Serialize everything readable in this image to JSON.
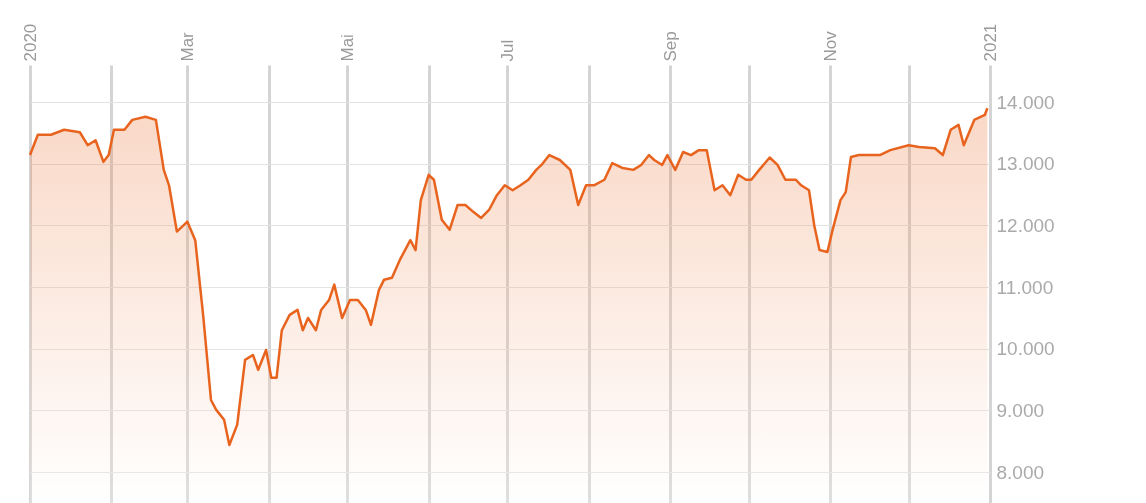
{
  "chart_data": {
    "type": "area",
    "x": [
      "2020-01-01",
      "2020-01-04",
      "2020-01-09",
      "2020-01-14",
      "2020-01-20",
      "2020-01-23",
      "2020-01-26",
      "2020-01-29",
      "2020-01-31",
      "2020-02-02",
      "2020-02-06",
      "2020-02-09",
      "2020-02-14",
      "2020-02-18",
      "2020-02-21",
      "2020-02-23",
      "2020-02-26",
      "2020-03-01",
      "2020-03-04",
      "2020-03-07",
      "2020-03-10",
      "2020-03-12",
      "2020-03-15",
      "2020-03-17",
      "2020-03-20",
      "2020-03-23",
      "2020-03-26",
      "2020-03-28",
      "2020-03-31",
      "2020-04-02",
      "2020-04-04",
      "2020-04-06",
      "2020-04-09",
      "2020-04-12",
      "2020-04-14",
      "2020-04-16",
      "2020-04-19",
      "2020-04-21",
      "2020-04-24",
      "2020-04-26",
      "2020-04-29",
      "2020-05-02",
      "2020-05-05",
      "2020-05-08",
      "2020-05-10",
      "2020-05-13",
      "2020-05-15",
      "2020-05-18",
      "2020-05-21",
      "2020-05-25",
      "2020-05-27",
      "2020-05-29",
      "2020-06-01",
      "2020-06-03",
      "2020-06-06",
      "2020-06-09",
      "2020-06-12",
      "2020-06-15",
      "2020-06-18",
      "2020-06-21",
      "2020-06-24",
      "2020-06-27",
      "2020-06-30",
      "2020-07-03",
      "2020-07-06",
      "2020-07-09",
      "2020-07-12",
      "2020-07-14",
      "2020-07-17",
      "2020-07-21",
      "2020-07-25",
      "2020-07-28",
      "2020-07-31",
      "2020-08-03",
      "2020-08-07",
      "2020-08-10",
      "2020-08-14",
      "2020-08-18",
      "2020-08-21",
      "2020-08-24",
      "2020-08-26",
      "2020-08-29",
      "2020-08-31",
      "2020-09-03",
      "2020-09-06",
      "2020-09-09",
      "2020-09-12",
      "2020-09-15",
      "2020-09-18",
      "2020-09-21",
      "2020-09-24",
      "2020-09-27",
      "2020-09-30",
      "2020-10-02",
      "2020-10-05",
      "2020-10-09",
      "2020-10-12",
      "2020-10-15",
      "2020-10-19",
      "2020-10-21",
      "2020-10-24",
      "2020-10-26",
      "2020-10-28",
      "2020-10-31",
      "2020-11-02",
      "2020-11-05",
      "2020-11-07",
      "2020-11-09",
      "2020-11-12",
      "2020-11-16",
      "2020-11-20",
      "2020-11-24",
      "2020-12-01",
      "2020-12-05",
      "2020-12-11",
      "2020-12-14",
      "2020-12-17",
      "2020-12-20",
      "2020-12-22",
      "2020-12-26",
      "2020-12-30",
      "2020-12-31"
    ],
    "series": [
      {
        "color": "#e8641e",
        "values": [
          13140,
          13470,
          13470,
          13550,
          13510,
          13300,
          13380,
          13030,
          13140,
          13550,
          13550,
          13710,
          13760,
          13710,
          12900,
          12650,
          11900,
          12060,
          11760,
          10550,
          9170,
          9010,
          8850,
          8440,
          8770,
          9820,
          9900,
          9660,
          9980,
          9530,
          9530,
          10300,
          10550,
          10630,
          10300,
          10500,
          10300,
          10630,
          10790,
          11040,
          10500,
          10790,
          10790,
          10630,
          10390,
          10950,
          11120,
          11150,
          11440,
          11760,
          11600,
          12410,
          12820,
          12740,
          12090,
          11930,
          12330,
          12330,
          12220,
          12120,
          12250,
          12490,
          12650,
          12570,
          12650,
          12740,
          12900,
          12980,
          13140,
          13060,
          12900,
          12330,
          12650,
          12650,
          12740,
          13010,
          12930,
          12900,
          12980,
          13140,
          13060,
          12980,
          13140,
          12900,
          13190,
          13140,
          13220,
          13220,
          12570,
          12650,
          12490,
          12820,
          12740,
          12740,
          12900,
          13100,
          12980,
          12740,
          12740,
          12650,
          12570,
          12000,
          11600,
          11570,
          11930,
          12410,
          12540,
          13110,
          13140,
          13140,
          13140,
          13220,
          13300,
          13270,
          13250,
          13140,
          13550,
          13630,
          13300,
          13710,
          13790,
          13900
        ]
      }
    ],
    "xlim": [
      "2020-01-01",
      "2021-01-01"
    ],
    "xticks": [
      {
        "value": "2020-01-01",
        "label": "2020"
      },
      {
        "value": "2020-02-01",
        "label": null
      },
      {
        "value": "2020-03-01",
        "label": "Mar"
      },
      {
        "value": "2020-04-01",
        "label": null
      },
      {
        "value": "2020-05-01",
        "label": "Mai"
      },
      {
        "value": "2020-06-01",
        "label": null
      },
      {
        "value": "2020-07-01",
        "label": "Jul"
      },
      {
        "value": "2020-08-01",
        "label": null
      },
      {
        "value": "2020-09-01",
        "label": "Sep"
      },
      {
        "value": "2020-10-01",
        "label": null
      },
      {
        "value": "2020-11-01",
        "label": "Nov"
      },
      {
        "value": "2020-12-01",
        "label": null
      },
      {
        "value": "2021-01-01",
        "label": "2021"
      }
    ],
    "ylim": [
      7500,
      14600
    ],
    "yticks": [
      {
        "value": 8000,
        "label": "8.000"
      },
      {
        "value": 9000,
        "label": "9.000"
      },
      {
        "value": 10000,
        "label": "10.000"
      },
      {
        "value": 11000,
        "label": "11.000"
      },
      {
        "value": 12000,
        "label": "12.000"
      },
      {
        "value": 13000,
        "label": "13.000"
      },
      {
        "value": 14000,
        "label": "14.000"
      }
    ],
    "grid": true
  }
}
